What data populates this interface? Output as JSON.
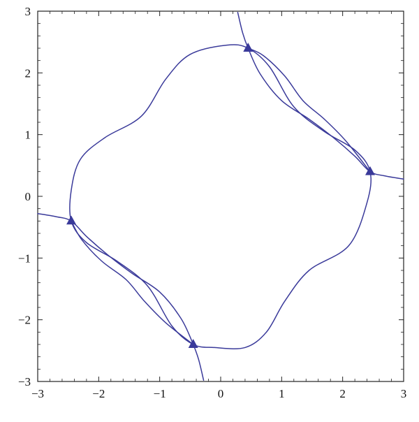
{
  "chart_data": {
    "type": "line",
    "title": "",
    "xlabel": "",
    "ylabel": "",
    "xlim": [
      -3,
      3
    ],
    "ylim": [
      -3,
      3
    ],
    "xticks": [
      -3,
      -2,
      -1,
      0,
      1,
      2,
      3
    ],
    "yticks": [
      -3,
      -2,
      -1,
      0,
      1,
      2,
      3
    ],
    "xtick_labels": [
      "−3",
      "−2",
      "−1",
      "0",
      "1",
      "2",
      "3"
    ],
    "ytick_labels": [
      "−3",
      "−2",
      "−1",
      "0",
      "1",
      "2",
      "3"
    ],
    "grid": false,
    "line_color": "#3a3a9a",
    "marker_color": "#3a3a9a",
    "series": [
      {
        "kind": "closed-curve",
        "points": [
          [
            0.1,
            2.45
          ],
          [
            0.45,
            2.4
          ],
          [
            0.8,
            2.1
          ],
          [
            1.2,
            1.45
          ],
          [
            1.7,
            1.05
          ],
          [
            2.2,
            0.75
          ],
          [
            2.45,
            0.4
          ],
          [
            2.4,
            -0.1
          ],
          [
            2.1,
            -0.8
          ],
          [
            1.45,
            -1.2
          ],
          [
            1.05,
            -1.7
          ],
          [
            0.75,
            -2.2
          ],
          [
            0.4,
            -2.45
          ],
          [
            -0.1,
            -2.45
          ],
          [
            -0.45,
            -2.4
          ],
          [
            -0.8,
            -2.1
          ],
          [
            -1.2,
            -1.45
          ],
          [
            -1.7,
            -1.05
          ],
          [
            -2.2,
            -0.75
          ],
          [
            -2.45,
            -0.4
          ],
          [
            -2.45,
            0.1
          ],
          [
            -2.3,
            0.6
          ],
          [
            -1.9,
            0.95
          ],
          [
            -1.3,
            1.3
          ],
          [
            -0.9,
            1.9
          ],
          [
            -0.5,
            2.3
          ]
        ]
      },
      {
        "kind": "open-curve",
        "points": [
          [
            0.28,
            2.98
          ],
          [
            0.36,
            2.65
          ],
          [
            0.45,
            2.4
          ],
          [
            0.65,
            1.98
          ],
          [
            1.0,
            1.55
          ],
          [
            1.45,
            1.25
          ],
          [
            1.85,
            0.95
          ],
          [
            2.2,
            0.65
          ],
          [
            2.45,
            0.4
          ],
          [
            2.7,
            0.33
          ],
          [
            3.0,
            0.28
          ]
        ]
      },
      {
        "kind": "open-curve",
        "points": [
          [
            0.45,
            2.4
          ],
          [
            0.7,
            2.28
          ],
          [
            1.05,
            1.95
          ],
          [
            1.35,
            1.55
          ],
          [
            1.7,
            1.25
          ],
          [
            2.05,
            0.9
          ],
          [
            2.45,
            0.4
          ]
        ]
      },
      {
        "kind": "open-curve",
        "points": [
          [
            -3.0,
            -0.28
          ],
          [
            -2.7,
            -0.33
          ],
          [
            -2.45,
            -0.4
          ],
          [
            -2.2,
            -0.65
          ],
          [
            -1.85,
            -0.95
          ],
          [
            -1.45,
            -1.25
          ],
          [
            -1.0,
            -1.55
          ],
          [
            -0.65,
            -1.98
          ],
          [
            -0.45,
            -2.4
          ],
          [
            -0.36,
            -2.65
          ],
          [
            -0.28,
            -2.98
          ]
        ]
      },
      {
        "kind": "open-curve",
        "points": [
          [
            -2.45,
            -0.4
          ],
          [
            -2.28,
            -0.7
          ],
          [
            -1.95,
            -1.05
          ],
          [
            -1.55,
            -1.35
          ],
          [
            -1.25,
            -1.7
          ],
          [
            -0.9,
            -2.05
          ],
          [
            -0.45,
            -2.4
          ]
        ]
      }
    ],
    "markers": [
      {
        "x": 0.45,
        "y": 2.4
      },
      {
        "x": 2.45,
        "y": 0.4
      },
      {
        "x": -2.45,
        "y": -0.4
      },
      {
        "x": -0.45,
        "y": -2.4
      }
    ]
  }
}
